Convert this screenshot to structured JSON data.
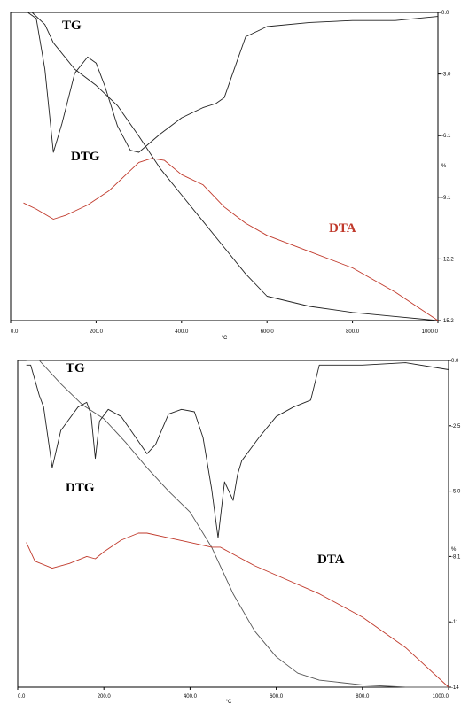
{
  "chart_data": [
    {
      "type": "line",
      "title": "",
      "xlabel": "°C",
      "ylabel": "%",
      "xlim": [
        0,
        1000
      ],
      "ylim": [
        -15.2,
        0.0
      ],
      "x_ticks": [
        "0.0",
        "200.0",
        "400.0",
        "600.0",
        "800.0",
        "1000.0"
      ],
      "y_ticks": [
        "0.0",
        "-3.0",
        "-6.1",
        "-9.1",
        "-12.2",
        "-15.2"
      ],
      "grid": false,
      "colors": {
        "TG": "#222222",
        "DTG": "#222222",
        "DTA": "#c0392b",
        "axis": "#000000"
      },
      "series": [
        {
          "name": "TG",
          "x": [
            50,
            80,
            100,
            150,
            200,
            250,
            300,
            350,
            400,
            450,
            500,
            550,
            600,
            700,
            800,
            900,
            1000
          ],
          "y": [
            0.0,
            -0.6,
            -1.5,
            -2.8,
            -3.6,
            -4.6,
            -6.1,
            -7.7,
            -9.0,
            -10.3,
            -11.6,
            -12.9,
            -14.0,
            -14.5,
            -14.8,
            -15.0,
            -15.2
          ]
        },
        {
          "name": "DTG",
          "x": [
            40,
            60,
            80,
            100,
            120,
            150,
            180,
            200,
            220,
            250,
            280,
            300,
            350,
            400,
            450,
            480,
            500,
            520,
            550,
            580,
            600,
            700,
            800,
            900,
            1000
          ],
          "y": [
            0.0,
            -0.3,
            -2.8,
            -6.9,
            -5.5,
            -3.0,
            -2.2,
            -2.5,
            -3.6,
            -5.6,
            -6.8,
            -6.9,
            -6.0,
            -5.2,
            -4.7,
            -4.5,
            -4.2,
            -3.0,
            -1.2,
            -0.9,
            -0.7,
            -0.5,
            -0.4,
            -0.4,
            -0.2
          ]
        },
        {
          "name": "DTA",
          "x": [
            30,
            60,
            100,
            130,
            180,
            230,
            270,
            300,
            330,
            360,
            400,
            450,
            500,
            550,
            600,
            700,
            800,
            900,
            1000
          ],
          "y": [
            -9.4,
            -9.7,
            -10.2,
            -10.0,
            -9.5,
            -8.8,
            -8.0,
            -7.4,
            -7.2,
            -7.3,
            -8.0,
            -8.5,
            -9.6,
            -10.4,
            -11.0,
            -11.8,
            -12.6,
            -13.8,
            -15.2
          ]
        }
      ],
      "labels": {
        "TG": "TG",
        "DTG": "DTG",
        "DTA": "DTA"
      }
    },
    {
      "type": "line",
      "title": "",
      "xlabel": "°C",
      "ylabel": "%",
      "xlim": [
        0,
        1000
      ],
      "ylim": [
        -14.0,
        0.0
      ],
      "x_ticks": [
        "0.0",
        "200.0",
        "400.0",
        "600.0",
        "800.0",
        "1000.0"
      ],
      "y_ticks": [
        "0.0",
        "-2.5",
        "-5.0",
        "-8.1",
        "-11",
        "-14"
      ],
      "grid": false,
      "colors": {
        "TG": "#555555",
        "DTG": "#222222",
        "DTA": "#c0392b",
        "axis": "#000000"
      },
      "series": [
        {
          "name": "TG",
          "x": [
            20,
            50,
            100,
            150,
            200,
            250,
            300,
            350,
            400,
            450,
            500,
            550,
            600,
            650,
            700,
            800,
            900,
            1000
          ],
          "y": [
            0.0,
            0.0,
            -1.0,
            -1.9,
            -2.5,
            -3.5,
            -4.6,
            -5.6,
            -6.5,
            -8.0,
            -10.0,
            -11.6,
            -12.7,
            -13.4,
            -13.7,
            -13.9,
            -14.0,
            -14.0
          ]
        },
        {
          "name": "DTG",
          "x": [
            20,
            30,
            50,
            60,
            80,
            100,
            120,
            140,
            160,
            170,
            180,
            190,
            210,
            240,
            270,
            300,
            320,
            350,
            380,
            410,
            430,
            450,
            465,
            480,
            500,
            510,
            520,
            560,
            600,
            640,
            680,
            700,
            800,
            900,
            1000
          ],
          "y": [
            -0.2,
            -0.2,
            -1.5,
            -2.0,
            -4.6,
            -3.0,
            -2.5,
            -2.0,
            -1.8,
            -2.3,
            -4.2,
            -2.6,
            -2.1,
            -2.4,
            -3.2,
            -4.0,
            -3.6,
            -2.3,
            -2.1,
            -2.2,
            -3.3,
            -5.5,
            -7.6,
            -5.2,
            -6.0,
            -4.9,
            -4.3,
            -3.3,
            -2.4,
            -2.0,
            -1.7,
            -0.2,
            -0.2,
            -0.1,
            -0.4
          ]
        },
        {
          "name": "DTA",
          "x": [
            20,
            40,
            80,
            120,
            160,
            180,
            200,
            240,
            280,
            300,
            350,
            400,
            450,
            470,
            490,
            550,
            600,
            700,
            800,
            900,
            1000
          ],
          "y": [
            -7.8,
            -8.6,
            -8.9,
            -8.7,
            -8.4,
            -8.5,
            -8.2,
            -7.7,
            -7.4,
            -7.4,
            -7.6,
            -7.8,
            -8.0,
            -8.0,
            -8.2,
            -8.8,
            -9.2,
            -10.0,
            -11.0,
            -12.3,
            -14.0
          ]
        }
      ],
      "labels": {
        "TG": "TG",
        "DTG": "DTG",
        "DTA": "DTA"
      }
    }
  ]
}
